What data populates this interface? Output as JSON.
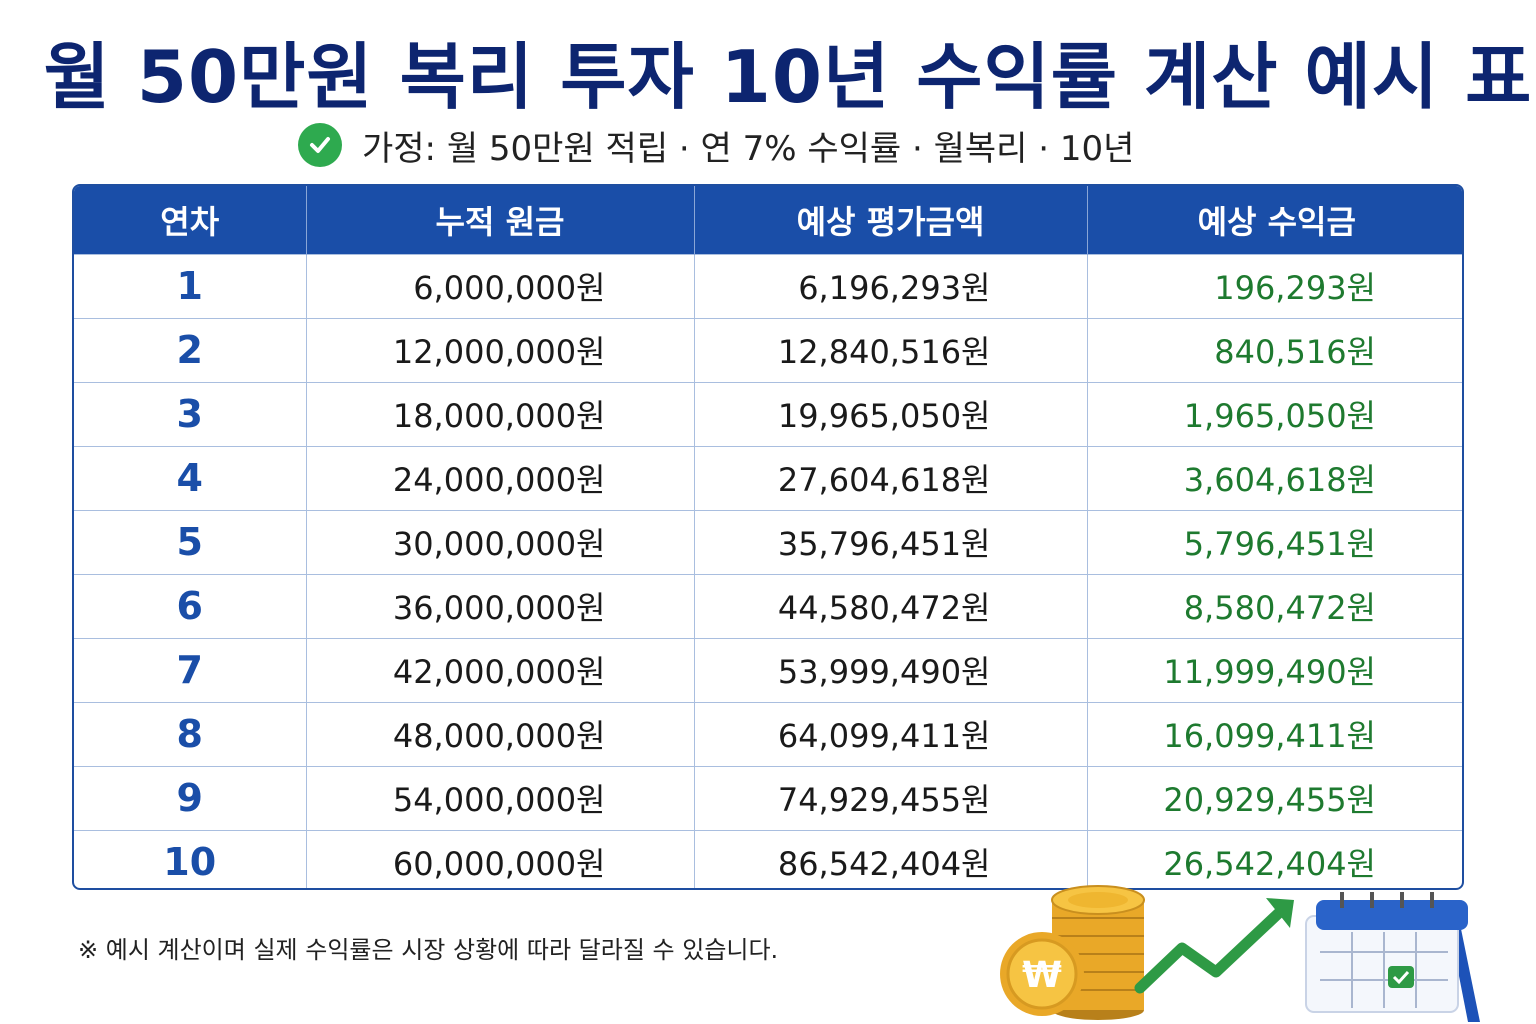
{
  "title": "월 50만원 복리 투자 10년 수익률 계산 예시 표",
  "assumption": "가정: 월 50만원 적립 · 연 7% 수익률 · 월복리 · 10년",
  "table": {
    "headers": [
      "연차",
      "누적 원금",
      "예상 평가금액",
      "예상 수익금"
    ],
    "rows": [
      {
        "year": "1",
        "principal": "6,000,000원",
        "value": "6,196,293원",
        "profit": "196,293원"
      },
      {
        "year": "2",
        "principal": "12,000,000원",
        "value": "12,840,516원",
        "profit": "840,516원"
      },
      {
        "year": "3",
        "principal": "18,000,000원",
        "value": "19,965,050원",
        "profit": "1,965,050원"
      },
      {
        "year": "4",
        "principal": "24,000,000원",
        "value": "27,604,618원",
        "profit": "3,604,618원"
      },
      {
        "year": "5",
        "principal": "30,000,000원",
        "value": "35,796,451원",
        "profit": "5,796,451원"
      },
      {
        "year": "6",
        "principal": "36,000,000원",
        "value": "44,580,472원",
        "profit": "8,580,472원"
      },
      {
        "year": "7",
        "principal": "42,000,000원",
        "value": "53,999,490원",
        "profit": "11,999,490원"
      },
      {
        "year": "8",
        "principal": "48,000,000원",
        "value": "64,099,411원",
        "profit": "16,099,411원"
      },
      {
        "year": "9",
        "principal": "54,000,000원",
        "value": "74,929,455원",
        "profit": "20,929,455원"
      },
      {
        "year": "10",
        "principal": "60,000,000원",
        "value": "86,542,404원",
        "profit": "26,542,404원"
      }
    ]
  },
  "note": "※ 예시 계산이며 실제 수익률은 시장 상황에 따라 달라질 수 있습니다.",
  "coin_symbol": "₩",
  "icons": [
    "check-circle-icon",
    "coin-stack-icon",
    "won-coin-icon",
    "growth-arrow-icon",
    "calendar-icon"
  ],
  "colors": {
    "title": "#0d2570",
    "header_bg": "#1a4ea8",
    "profit": "#1e7a2f",
    "check": "#2eaa4f"
  }
}
